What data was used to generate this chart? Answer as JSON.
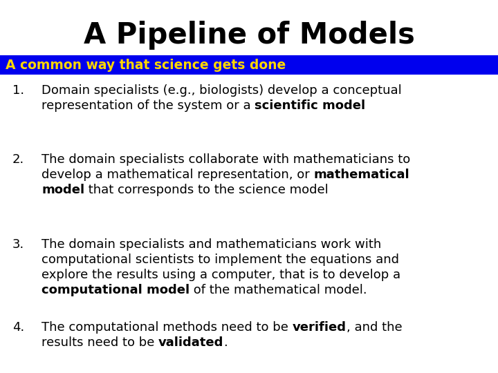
{
  "title": "A Pipeline of Models",
  "subtitle": "A common way that science gets done",
  "title_color": "#000000",
  "title_fontsize": 30,
  "subtitle_color": "#FFD700",
  "subtitle_bg_color": "#0000EE",
  "subtitle_fontsize": 13.5,
  "body_fontsize": 13.0,
  "background_color": "#FFFFFF",
  "items": [
    {
      "number": "1.",
      "lines": [
        [
          {
            "text": "Domain specialists (e.g., biologists) develop a conceptual",
            "bold": false
          }
        ],
        [
          {
            "text": "representation of the system or a ",
            "bold": false
          },
          {
            "text": "scientific model",
            "bold": true
          }
        ]
      ]
    },
    {
      "number": "2.",
      "lines": [
        [
          {
            "text": "The domain specialists collaborate with mathematicians to",
            "bold": false
          }
        ],
        [
          {
            "text": "develop a mathematical representation, or ",
            "bold": false
          },
          {
            "text": "mathematical",
            "bold": true
          }
        ],
        [
          {
            "text": "model",
            "bold": true
          },
          {
            "text": " that corresponds to the science model",
            "bold": false
          }
        ]
      ]
    },
    {
      "number": "3.",
      "lines": [
        [
          {
            "text": "The domain specialists and mathematicians work with",
            "bold": false
          }
        ],
        [
          {
            "text": "computational scientists to implement the equations and",
            "bold": false
          }
        ],
        [
          {
            "text": "explore the results using a computer, that is to develop a",
            "bold": false
          }
        ],
        [
          {
            "text": "computational model",
            "bold": true
          },
          {
            "text": " of the mathematical model.",
            "bold": false
          }
        ]
      ]
    },
    {
      "number": "4.",
      "lines": [
        [
          {
            "text": "The computational methods need to be ",
            "bold": false
          },
          {
            "text": "verified",
            "bold": true
          },
          {
            "text": ", and the",
            "bold": false
          }
        ],
        [
          {
            "text": "results need to be ",
            "bold": false
          },
          {
            "text": "validated",
            "bold": true
          },
          {
            "text": ".",
            "bold": false
          }
        ]
      ]
    }
  ]
}
